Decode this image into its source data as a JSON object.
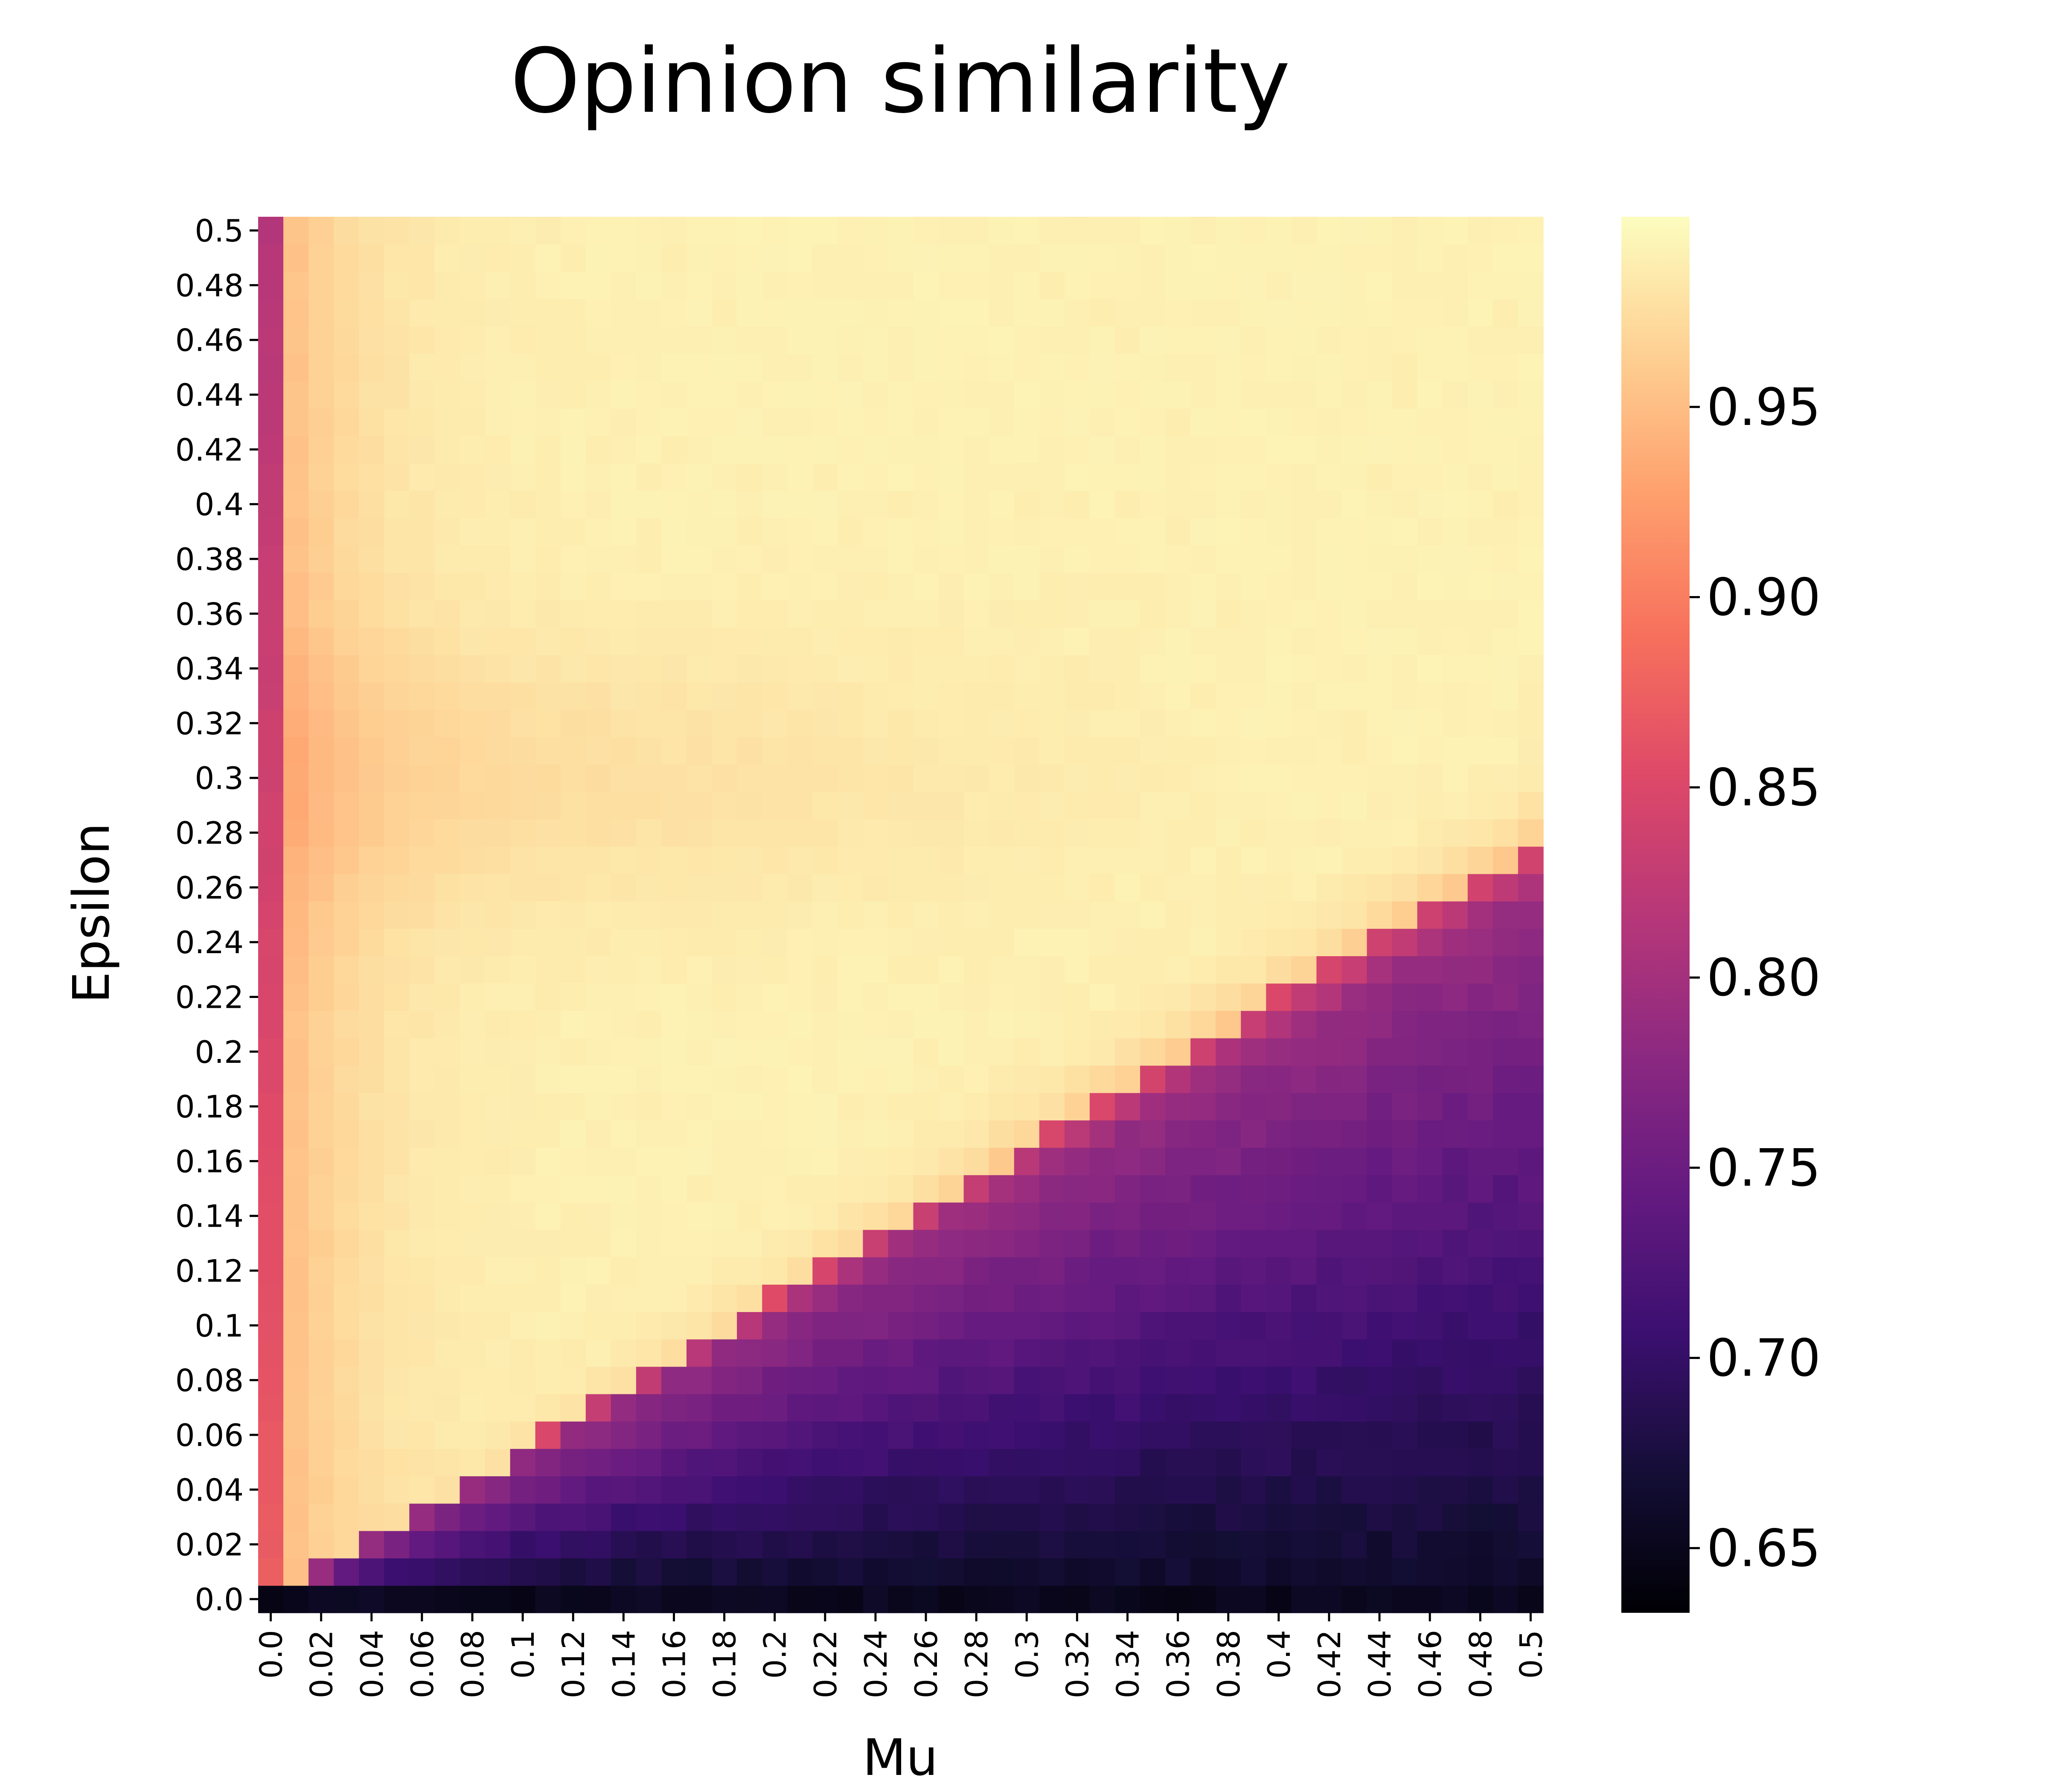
{
  "chart_data": {
    "type": "heatmap",
    "title": "Opinion similarity",
    "xlabel": "Mu",
    "ylabel": "Epsilon",
    "x_tick_labels": [
      "0.0",
      "0.02",
      "0.04",
      "0.06",
      "0.08",
      "0.1",
      "0.12",
      "0.14",
      "0.16",
      "0.18",
      "0.2",
      "0.22",
      "0.24",
      "0.26",
      "0.28",
      "0.3",
      "0.32",
      "0.34",
      "0.36",
      "0.38",
      "0.4",
      "0.42",
      "0.44",
      "0.46",
      "0.48",
      "0.5"
    ],
    "y_tick_labels": [
      "0.5",
      "0.48",
      "0.46",
      "0.44",
      "0.42",
      "0.4",
      "0.38",
      "0.36",
      "0.34",
      "0.32",
      "0.3",
      "0.28",
      "0.26",
      "0.24",
      "0.22",
      "0.2",
      "0.18",
      "0.16",
      "0.14",
      "0.12",
      "0.1",
      "0.08",
      "0.06",
      "0.04",
      "0.02",
      "0.0"
    ],
    "x_range": [
      0.0,
      0.5
    ],
    "y_range": [
      0.0,
      0.5
    ],
    "grid_resolution": [
      51,
      51
    ],
    "colormap": "magma",
    "colorbar_range": [
      0.633,
      1.0
    ],
    "colorbar_ticks": [
      "0.65",
      "0.70",
      "0.75",
      "0.80",
      "0.85",
      "0.90",
      "0.95"
    ],
    "colorbar_tick_values": [
      0.65,
      0.7,
      0.75,
      0.8,
      0.85,
      0.9,
      0.95
    ],
    "value_summary": {
      "upper_left_region": "near 0.99-1.0 (pale yellow), slight dip to ~0.97 around epsilon 0.28-0.32",
      "mu_0_column": "about 0.80-0.86 increasing toward low epsilon",
      "transition_boundary": "epsilon ~= 0.55 * mu, sharp drop from ~1.0 to ~0.8",
      "below_boundary": "decreasing from ~0.80 near boundary to ~0.66 at low epsilon",
      "epsilon_0_row": "about 0.64-0.66 (black)"
    }
  }
}
